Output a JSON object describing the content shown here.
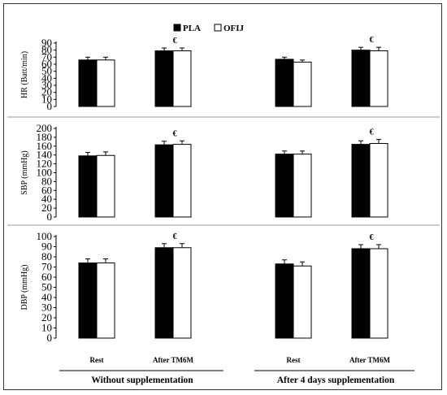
{
  "legend": [
    {
      "label": "PLA",
      "color": "#000000"
    },
    {
      "label": "OFIJ",
      "color": "#ffffff"
    }
  ],
  "x_categories": [
    "Rest",
    "After TM6M",
    "Rest",
    "After TM6M"
  ],
  "groups": [
    "Without supplementation",
    "After 4 days supplementation"
  ],
  "significance_marker": "€",
  "chart_data": [
    {
      "type": "bar",
      "ylabel": "HR (Batt/min)",
      "ylim": [
        0,
        90
      ],
      "yticks": [
        0,
        10,
        20,
        30,
        40,
        50,
        60,
        70,
        80,
        90
      ],
      "categories": [
        "Rest",
        "After TM6M",
        "Rest",
        "After TM6M"
      ],
      "series": [
        {
          "name": "PLA",
          "values": [
            66,
            79,
            67,
            80
          ],
          "errors": [
            4,
            4,
            3,
            4
          ]
        },
        {
          "name": "OFIJ",
          "values": [
            66,
            79,
            63,
            79
          ],
          "errors": [
            4,
            4,
            3,
            5
          ]
        }
      ],
      "significant": [
        false,
        true,
        false,
        true
      ]
    },
    {
      "type": "bar",
      "ylabel": "SBP (mmHg)",
      "ylim": [
        0,
        200
      ],
      "yticks": [
        0,
        20,
        40,
        60,
        80,
        100,
        120,
        140,
        160,
        180,
        200
      ],
      "categories": [
        "Rest",
        "After TM6M",
        "Rest",
        "After TM6M"
      ],
      "series": [
        {
          "name": "PLA",
          "values": [
            138,
            163,
            142,
            164
          ],
          "errors": [
            8,
            8,
            7,
            8
          ]
        },
        {
          "name": "OFIJ",
          "values": [
            139,
            164,
            142,
            166
          ],
          "errors": [
            8,
            8,
            7,
            9
          ]
        }
      ],
      "significant": [
        false,
        true,
        false,
        true
      ]
    },
    {
      "type": "bar",
      "ylabel": "DBP (mmHg)",
      "ylim": [
        0,
        100
      ],
      "yticks": [
        0,
        10,
        20,
        30,
        40,
        50,
        60,
        70,
        80,
        90,
        100
      ],
      "categories": [
        "Rest",
        "After TM6M",
        "Rest",
        "After TM6M"
      ],
      "series": [
        {
          "name": "PLA",
          "values": [
            74,
            89,
            73,
            88
          ],
          "errors": [
            4,
            4,
            4,
            4
          ]
        },
        {
          "name": "OFIJ",
          "values": [
            74,
            89,
            71,
            88
          ],
          "errors": [
            4,
            4,
            4,
            4
          ]
        }
      ],
      "significant": [
        false,
        true,
        false,
        true
      ]
    }
  ]
}
